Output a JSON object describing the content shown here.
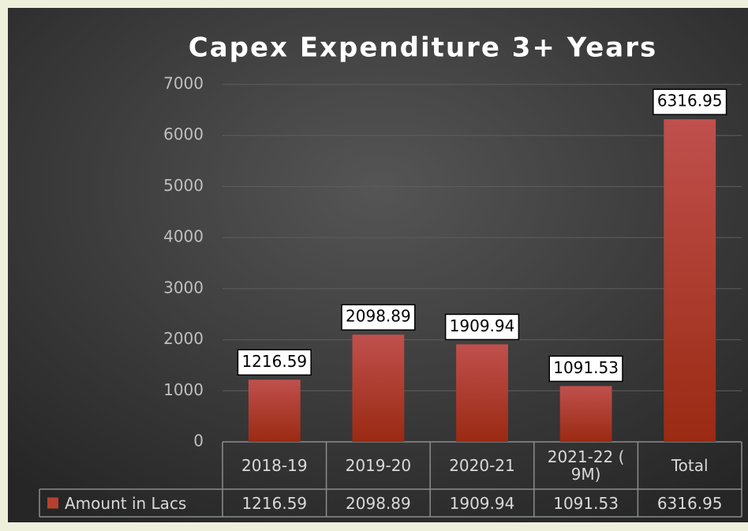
{
  "chart_data": {
    "type": "bar",
    "title": "Capex Expenditure 3+ Years",
    "categories": [
      "2018-19",
      "2019-20",
      "2020-21",
      "2021-22 ( 9M)",
      "Total"
    ],
    "series": [
      {
        "name": "Amount in Lacs",
        "color": "#b5402e",
        "values": [
          1216.59,
          2098.89,
          1909.94,
          1091.53,
          6316.95
        ]
      }
    ],
    "ylim": [
      0,
      7000
    ],
    "yticks": [
      0,
      1000,
      2000,
      3000,
      4000,
      5000,
      6000,
      7000
    ],
    "grid": true,
    "data_table": true
  }
}
